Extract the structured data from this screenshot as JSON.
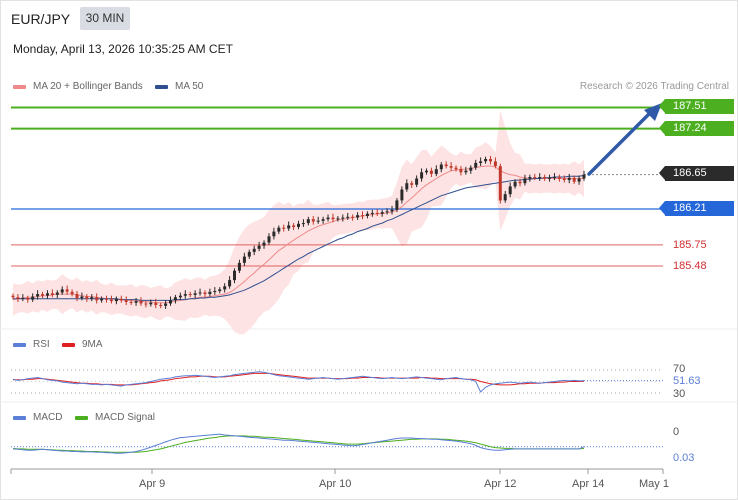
{
  "header": {
    "symbol": "EUR/JPY",
    "timeframe": "30 MIN",
    "datetime": "Monday, April 13, 2026 10:35:25 AM CET",
    "credit": "Research © 2026 Trading Central"
  },
  "legend": {
    "ma20": "MA 20 + Bollinger Bands",
    "ma50": "MA 50",
    "rsi": "RSI",
    "rsi9": "9MA",
    "macd": "MACD",
    "macd_signal": "MACD Signal"
  },
  "colors": {
    "ma20": "#f08a8a",
    "ma50": "#2f4f8f",
    "bands": "#fde3e3",
    "resistance": "#4caf1f",
    "support": "#2567d9",
    "current": "#2b2b2b",
    "minor": "#e06060",
    "arrow": "#2f5aa8",
    "rsi": "#5b7fd6",
    "rsi9": "#e02020",
    "macd": "#5b7fd6",
    "macd_signal": "#4caf1f",
    "candle_up": "#2a2a2a",
    "candle_down": "#c0392b"
  },
  "levels": [
    {
      "label": "187.51",
      "value": 187.51,
      "kind": "resistance"
    },
    {
      "label": "187.24",
      "value": 187.24,
      "kind": "resistance"
    },
    {
      "label": "186.65",
      "value": 186.65,
      "kind": "current"
    },
    {
      "label": "186.21",
      "value": 186.21,
      "kind": "support"
    },
    {
      "label": "185.75",
      "value": 185.75,
      "kind": "minor"
    },
    {
      "label": "185.48",
      "value": 185.48,
      "kind": "minor"
    }
  ],
  "rsi_labels": {
    "upper": "70",
    "current": "51.63",
    "lower": "30"
  },
  "macd_labels": {
    "zero": "0",
    "current": "0.03"
  },
  "x_ticks": [
    "Apr 9",
    "Apr 10",
    "Apr 12",
    "Apr 14",
    "May 1"
  ],
  "chart_data": [
    {
      "type": "candlestick",
      "title": "EUR/JPY 30 MIN",
      "ylim": [
        184.87,
        187.84
      ],
      "x_ticks": [
        "Apr 9",
        "Apr 10",
        "Apr 12",
        "Apr 14",
        "May 1"
      ],
      "close": [
        185.08,
        185.06,
        185.07,
        185.05,
        185.09,
        185.12,
        185.1,
        185.13,
        185.11,
        185.14,
        185.18,
        185.15,
        185.12,
        185.07,
        185.09,
        185.06,
        185.08,
        185.04,
        185.06,
        185.05,
        185.03,
        185.06,
        185.04,
        185.02,
        185.01,
        185.03,
        185.0,
        184.99,
        185.01,
        184.98,
        184.97,
        185.0,
        185.04,
        185.08,
        185.1,
        185.12,
        185.11,
        185.13,
        185.14,
        185.12,
        185.15,
        185.16,
        185.18,
        185.22,
        185.3,
        185.42,
        185.52,
        185.6,
        185.66,
        185.7,
        185.74,
        185.78,
        185.86,
        185.92,
        185.97,
        185.96,
        186.0,
        185.98,
        186.02,
        186.03,
        186.08,
        186.05,
        186.06,
        186.08,
        186.1,
        186.08,
        186.09,
        186.1,
        186.11,
        186.1,
        186.13,
        186.12,
        186.15,
        186.16,
        186.15,
        186.17,
        186.18,
        186.2,
        186.32,
        186.46,
        186.54,
        186.52,
        186.6,
        186.68,
        186.7,
        186.66,
        186.72,
        186.78,
        186.76,
        186.74,
        186.72,
        186.68,
        186.7,
        186.74,
        186.8,
        186.82,
        186.85,
        186.82,
        186.76,
        186.32,
        186.4,
        186.5,
        186.56,
        186.54,
        186.6,
        186.62,
        186.61,
        186.62,
        186.6,
        186.61,
        186.62,
        186.6,
        186.58,
        186.61,
        186.56,
        186.6,
        186.65
      ],
      "series": [
        {
          "name": "MA 20",
          "values": [
            185.05,
            185.06,
            185.07,
            185.08,
            185.08,
            185.09,
            185.1,
            185.1,
            185.11,
            185.12,
            185.12,
            185.12,
            185.12,
            185.11,
            185.1,
            185.09,
            185.09,
            185.08,
            185.07,
            185.06,
            185.06,
            185.05,
            185.05,
            185.04,
            185.04,
            185.03,
            185.03,
            185.02,
            185.02,
            185.01,
            185.01,
            185.01,
            185.02,
            185.03,
            185.04,
            185.05,
            185.06,
            185.07,
            185.08,
            185.08,
            185.09,
            185.1,
            185.11,
            185.12,
            185.14,
            185.18,
            185.23,
            185.28,
            185.34,
            185.39,
            185.45,
            185.5,
            185.56,
            185.62,
            185.68,
            185.72,
            185.77,
            185.81,
            185.85,
            185.89,
            185.93,
            185.96,
            185.99,
            186.01,
            186.03,
            186.05,
            186.07,
            186.08,
            186.09,
            186.1,
            186.11,
            186.12,
            186.13,
            186.14,
            186.15,
            186.15,
            186.16,
            186.17,
            186.2,
            186.24,
            186.3,
            186.35,
            186.41,
            186.47,
            186.52,
            186.56,
            186.6,
            186.64,
            186.67,
            186.7,
            186.71,
            186.72,
            186.72,
            186.73,
            186.74,
            186.75,
            186.76,
            186.76,
            186.75,
            186.7,
            186.67,
            186.65,
            186.64,
            186.62,
            186.61,
            186.6,
            186.6,
            186.6,
            186.6,
            186.6,
            186.6,
            186.6,
            186.6,
            186.6,
            186.6,
            186.6,
            186.6
          ]
        },
        {
          "name": "MA 50",
          "values": [
            185.06,
            185.06,
            185.06,
            185.06,
            185.06,
            185.06,
            185.06,
            185.06,
            185.06,
            185.06,
            185.06,
            185.06,
            185.06,
            185.06,
            185.06,
            185.06,
            185.06,
            185.06,
            185.06,
            185.06,
            185.06,
            185.06,
            185.05,
            185.05,
            185.05,
            185.05,
            185.04,
            185.04,
            185.04,
            185.04,
            185.04,
            185.04,
            185.04,
            185.05,
            185.05,
            185.05,
            185.06,
            185.06,
            185.07,
            185.07,
            185.08,
            185.08,
            185.09,
            185.1,
            185.11,
            185.13,
            185.15,
            185.17,
            185.2,
            185.23,
            185.26,
            185.29,
            185.33,
            185.37,
            185.41,
            185.45,
            185.49,
            185.53,
            185.57,
            185.6,
            185.64,
            185.67,
            185.7,
            185.73,
            185.76,
            185.79,
            185.82,
            185.84,
            185.87,
            185.89,
            185.92,
            185.94,
            185.96,
            185.99,
            186.01,
            186.03,
            186.06,
            186.08,
            186.11,
            186.14,
            186.17,
            186.2,
            186.23,
            186.26,
            186.29,
            186.32,
            186.35,
            186.38,
            186.4,
            186.42,
            186.44,
            186.46,
            186.48,
            186.49,
            186.5,
            186.51,
            186.52,
            186.53,
            186.54,
            186.55,
            186.56,
            186.57,
            186.58,
            186.58,
            186.59,
            186.59,
            186.6,
            186.6,
            186.61,
            186.61,
            186.62,
            186.62,
            186.62,
            186.63,
            186.63,
            186.63,
            186.64
          ]
        }
      ]
    },
    {
      "type": "line",
      "title": "RSI",
      "ylim": [
        20,
        80
      ],
      "series": [
        {
          "name": "RSI",
          "values": [
            54,
            52,
            53,
            55,
            56,
            57,
            55,
            53,
            52,
            51,
            49,
            48,
            47,
            46,
            47,
            46,
            45,
            45,
            44,
            45,
            44,
            43,
            42,
            44,
            45,
            46,
            47,
            48,
            50,
            52,
            54,
            55,
            56,
            58,
            59,
            60,
            60,
            61,
            60,
            59,
            58,
            57,
            58,
            59,
            60,
            62,
            63,
            64,
            65,
            66,
            67,
            66,
            64,
            62,
            60,
            59,
            58,
            57,
            56,
            55,
            54,
            55,
            56,
            57,
            56,
            55,
            54,
            55,
            56,
            57,
            58,
            59,
            58,
            57,
            56,
            55,
            56,
            57,
            56,
            55,
            56,
            57,
            58,
            57,
            56,
            55,
            54,
            53,
            55,
            56,
            57,
            55,
            54,
            53,
            50,
            32,
            40,
            44,
            46,
            47,
            48,
            49,
            48,
            47,
            48,
            49,
            48,
            47,
            48,
            49,
            50,
            51,
            52,
            51,
            52,
            51,
            51.63
          ]
        },
        {
          "name": "9MA",
          "values": [
            53,
            53,
            53,
            54,
            54,
            55,
            55,
            54,
            53,
            52,
            51,
            50,
            49,
            48,
            47,
            47,
            46,
            46,
            45,
            45,
            45,
            44,
            44,
            44,
            44,
            45,
            46,
            47,
            48,
            49,
            51,
            52,
            53,
            55,
            56,
            57,
            58,
            58,
            59,
            59,
            59,
            58,
            58,
            58,
            59,
            60,
            61,
            62,
            63,
            64,
            64,
            64,
            64,
            63,
            62,
            61,
            60,
            59,
            58,
            57,
            56,
            56,
            56,
            56,
            56,
            55,
            55,
            55,
            55,
            56,
            56,
            57,
            57,
            57,
            57,
            56,
            56,
            56,
            56,
            56,
            56,
            56,
            56,
            57,
            57,
            56,
            56,
            55,
            55,
            55,
            55,
            55,
            54,
            54,
            53,
            50,
            48,
            46,
            45,
            44,
            44,
            44,
            45,
            46,
            46,
            47,
            47,
            47,
            48,
            48,
            48,
            49,
            49,
            50,
            50,
            50,
            50.5
          ]
        }
      ]
    },
    {
      "type": "line",
      "title": "MACD",
      "series": [
        {
          "name": "MACD",
          "values": [
            -0.02,
            -0.03,
            -0.04,
            -0.05,
            -0.05,
            -0.04,
            -0.03,
            -0.04,
            -0.05,
            -0.06,
            -0.07,
            -0.07,
            -0.08,
            -0.08,
            -0.09,
            -0.09,
            -0.09,
            -0.1,
            -0.1,
            -0.11,
            -0.11,
            -0.12,
            -0.12,
            -0.11,
            -0.1,
            -0.08,
            -0.05,
            -0.02,
            0.02,
            0.06,
            0.1,
            0.14,
            0.18,
            0.21,
            0.24,
            0.25,
            0.26,
            0.27,
            0.28,
            0.29,
            0.3,
            0.31,
            0.32,
            0.3,
            0.29,
            0.28,
            0.27,
            0.26,
            0.25,
            0.24,
            0.23,
            0.22,
            0.21,
            0.2,
            0.19,
            0.18,
            0.18,
            0.17,
            0.16,
            0.15,
            0.14,
            0.13,
            0.12,
            0.11,
            0.1,
            0.09,
            0.08,
            0.07,
            0.06,
            0.05,
            0.06,
            0.08,
            0.1,
            0.12,
            0.14,
            0.16,
            0.18,
            0.2,
            0.22,
            0.23,
            0.23,
            0.23,
            0.22,
            0.22,
            0.21,
            0.2,
            0.2,
            0.19,
            0.18,
            0.17,
            0.16,
            0.14,
            0.12,
            0.1,
            0.06,
            0.01,
            -0.02,
            -0.04,
            -0.05,
            -0.05,
            -0.04,
            -0.03,
            -0.02,
            -0.02,
            -0.02,
            -0.02,
            -0.02,
            -0.02,
            -0.02,
            -0.02,
            -0.02,
            -0.02,
            -0.02,
            -0.02,
            -0.02,
            -0.02,
            0.03
          ]
        },
        {
          "name": "MACD Signal",
          "values": [
            -0.01,
            -0.02,
            -0.02,
            -0.03,
            -0.03,
            -0.03,
            -0.03,
            -0.04,
            -0.04,
            -0.05,
            -0.05,
            -0.06,
            -0.06,
            -0.07,
            -0.07,
            -0.08,
            -0.08,
            -0.08,
            -0.09,
            -0.09,
            -0.1,
            -0.1,
            -0.1,
            -0.1,
            -0.1,
            -0.1,
            -0.09,
            -0.08,
            -0.06,
            -0.04,
            -0.02,
            0.01,
            0.04,
            0.07,
            0.1,
            0.13,
            0.15,
            0.17,
            0.19,
            0.21,
            0.23,
            0.24,
            0.26,
            0.27,
            0.28,
            0.28,
            0.28,
            0.28,
            0.27,
            0.27,
            0.26,
            0.25,
            0.25,
            0.24,
            0.23,
            0.22,
            0.21,
            0.2,
            0.19,
            0.18,
            0.17,
            0.16,
            0.15,
            0.14,
            0.13,
            0.12,
            0.11,
            0.1,
            0.09,
            0.09,
            0.09,
            0.1,
            0.11,
            0.12,
            0.13,
            0.14,
            0.15,
            0.16,
            0.17,
            0.18,
            0.19,
            0.2,
            0.2,
            0.21,
            0.21,
            0.21,
            0.21,
            0.2,
            0.2,
            0.19,
            0.18,
            0.17,
            0.16,
            0.14,
            0.12,
            0.09,
            0.06,
            0.03,
            0.01,
            0.0,
            -0.01,
            -0.01,
            -0.02,
            -0.02,
            -0.02,
            -0.02,
            -0.02,
            -0.02,
            -0.02,
            -0.02,
            -0.02,
            -0.02,
            -0.02,
            -0.02,
            -0.02,
            -0.02,
            -0.01
          ]
        }
      ]
    }
  ]
}
